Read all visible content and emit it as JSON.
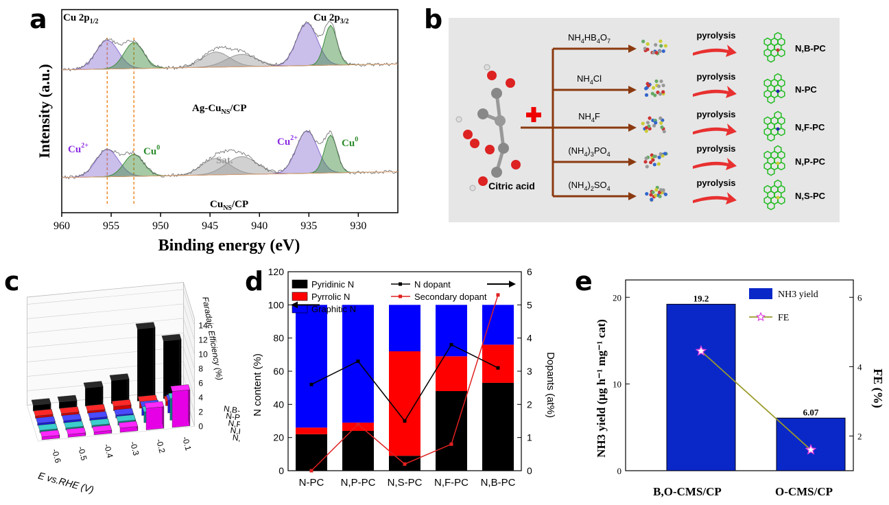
{
  "panels": {
    "a": "a",
    "b": "b",
    "c": "c",
    "d": "d",
    "e": "e"
  },
  "xps": {
    "type": "line",
    "ylabel": "Intensity (a.u.)",
    "xlabel": "Binding energy (eV)",
    "xlim": [
      960,
      926
    ],
    "xticks": [
      960,
      955,
      950,
      945,
      940,
      935,
      930
    ],
    "peak_top_left": "Cu 2p",
    "peak_top_left_sub": "1/2",
    "peak_top_right": "Cu 2p",
    "peak_top_right_sub": "3/2",
    "sample_top": "Ag-Cu",
    "sample_top_sub": "NS",
    "sample_top_suffix": "/CP",
    "sample_bottom": "Cu",
    "sample_bottom_sub": "NS",
    "sample_bottom_suffix": "/CP",
    "cu2_label": "Cu",
    "cu2_sup": "2+",
    "cu0_label": "Cu",
    "cu0_sup": "0",
    "sat_label": "Sat.",
    "dashed_lines_eV": [
      955.4,
      952.7
    ],
    "peaks": [
      {
        "name": "Cu2+ 2p1/2",
        "center": 955.4,
        "color": "#8a6fd1"
      },
      {
        "name": "Cu0 2p1/2",
        "center": 952.7,
        "color": "#3a8a3a"
      },
      {
        "name": "Sat. 1",
        "center": 944.4,
        "color": "#999999"
      },
      {
        "name": "Sat. 2",
        "center": 941.8,
        "color": "#999999"
      },
      {
        "name": "Cu2+ 2p3/2",
        "center": 935.2,
        "color": "#8a6fd1"
      },
      {
        "name": "Cu0 2p3/2",
        "center": 932.8,
        "color": "#3a8a3a"
      }
    ]
  },
  "scheme": {
    "precursor": "Citric acid",
    "step": "pyrolysis",
    "rows": [
      {
        "reagent": "NH4HB4O7",
        "product": "N,B-PC"
      },
      {
        "reagent": "NH4Cl",
        "product": "N-PC"
      },
      {
        "reagent": "NH4F",
        "product": "N,F-PC"
      },
      {
        "reagent": "(NH4)3PO4",
        "product": "N,P-PC"
      },
      {
        "reagent": "(NH4)2SO4",
        "product": "N,S-PC"
      }
    ]
  },
  "bar3d": {
    "type": "bar",
    "zlabel": "Faradaic Efficiency (%)",
    "xlabel": "E vs.RHE (V)",
    "zticks": [
      "0",
      "2",
      "4",
      "6",
      "8",
      "10",
      "12",
      "14"
    ],
    "potentials": [
      "-0.6",
      "-0.5",
      "-0.4",
      "-0.3",
      "-0.2",
      "-0.1"
    ],
    "catalysts": [
      "N,B-PC",
      "N-PC",
      "N,F-PC",
      "N,P-PC",
      "N,S-PC"
    ],
    "fe_series": [
      {
        "name": "N,B-PC",
        "color": "#000000",
        "values": [
          0.8,
          0.9,
          2.5,
          3.2,
          10.0,
          8.0
        ]
      },
      {
        "name": "N-PC",
        "color": "#cc0000",
        "values": [
          0.3,
          0.3,
          0.3,
          0.6,
          0.9,
          0.6
        ]
      },
      {
        "name": "N,F-PC",
        "color": "#1a1ad6",
        "values": [
          0.3,
          0.3,
          0.3,
          0.4,
          1.2,
          1.8
        ]
      },
      {
        "name": "N,P-PC",
        "color": "#0f7f7f",
        "values": [
          0.3,
          0.3,
          0.3,
          0.5,
          1.5,
          3.0
        ]
      },
      {
        "name": "N,S-PC",
        "color": "#e600e6",
        "values": [
          0.4,
          0.4,
          0.4,
          0.6,
          3.0,
          5.0
        ]
      }
    ]
  },
  "chart_data": [
    {
      "type": "bar",
      "title": "",
      "xlabel": "",
      "ylabel": "N content (%)",
      "y2label": "Dopants (at%)",
      "categories": [
        "N-PC",
        "N,P-PC",
        "N,S-PC",
        "N,F-PC",
        "N,B-PC"
      ],
      "ylim": [
        0,
        120
      ],
      "yticks": [
        "0",
        "20",
        "40",
        "60",
        "80",
        "100",
        "120"
      ],
      "y2lim": [
        0,
        6
      ],
      "y2ticks": [
        "0",
        "1",
        "2",
        "3",
        "4",
        "5",
        "6"
      ],
      "series": [
        {
          "name": "Pyridinic N",
          "color": "#000000",
          "values": [
            22,
            24,
            9,
            48,
            53
          ]
        },
        {
          "name": "Pyrrolic N",
          "color": "#ff0000",
          "values": [
            4,
            5,
            63,
            21,
            23
          ]
        },
        {
          "name": "Graphitic N",
          "color": "#0000ff",
          "values": [
            74,
            71,
            28,
            31,
            24
          ]
        }
      ],
      "lines": [
        {
          "name": "N dopant",
          "color": "#000000",
          "values": [
            2.6,
            3.3,
            1.5,
            3.8,
            3.1
          ]
        },
        {
          "name": "Secondary dopant",
          "color": "#e02020",
          "values": [
            0.0,
            1.4,
            0.2,
            0.8,
            5.3
          ]
        }
      ]
    },
    {
      "type": "bar",
      "title": "",
      "xlabel": "",
      "ylabel": "NH3 yield (μg h⁻¹ mg⁻¹ cat)",
      "y2label": "FE (%)",
      "categories": [
        "B,O-CMS/CP",
        "O-CMS/CP"
      ],
      "ylim": [
        0,
        22
      ],
      "yticks": [
        "0",
        "10",
        "20"
      ],
      "y2lim": [
        1,
        6.5
      ],
      "y2ticks": [
        "2",
        "4",
        "6"
      ],
      "series": [
        {
          "name": "NH3 yield",
          "color": "#0a28c8",
          "values": [
            19.2,
            6.07
          ]
        }
      ],
      "value_labels": [
        "19.2",
        "6.07"
      ],
      "lines": [
        {
          "name": "FE",
          "color": "#9a9a2a",
          "values": [
            4.45,
            1.6
          ]
        }
      ]
    }
  ]
}
